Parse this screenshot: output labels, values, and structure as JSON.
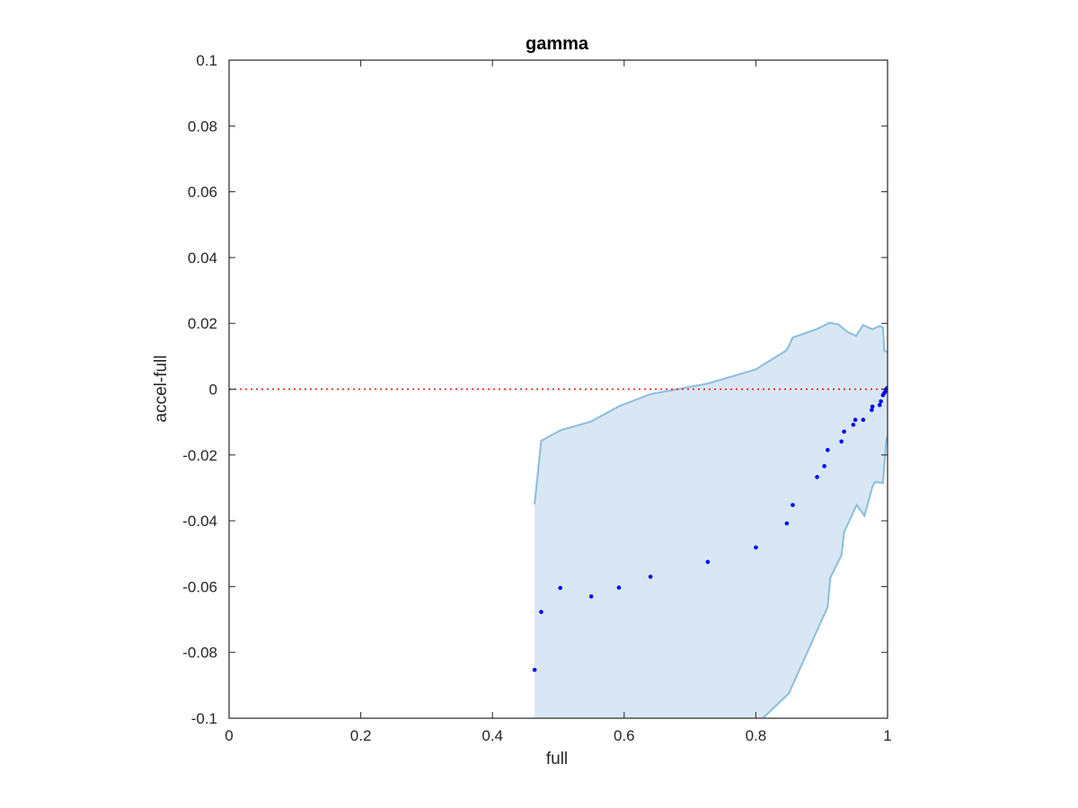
{
  "chart_data": {
    "type": "scatter",
    "title": "gamma",
    "xlabel": "full",
    "ylabel": "accel-full",
    "xlim": [
      0,
      1
    ],
    "ylim": [
      -0.1,
      0.1
    ],
    "xticks": [
      0,
      0.2,
      0.4,
      0.6,
      0.8,
      1
    ],
    "xtick_labels": [
      "0",
      "0.2",
      "0.4",
      "0.6",
      "0.8",
      "1"
    ],
    "yticks": [
      0.1,
      0.08,
      0.06,
      0.04,
      0.02,
      0,
      -0.02,
      -0.04,
      -0.06,
      -0.08,
      -0.1
    ],
    "ytick_labels": [
      "0.1",
      "0.08",
      "0.06",
      "0.04",
      "0.02",
      "0",
      "-0.02",
      "-0.04",
      "-0.06",
      "-0.08",
      "-0.1"
    ],
    "grid": false,
    "reference_line": {
      "y": 0,
      "style": "dotted",
      "color": "#ff0000"
    },
    "colors": {
      "points": "#0000ff",
      "band_fill": "#d8e7f3",
      "band_edge": "#8bbde0",
      "axes": "#262626"
    },
    "band": {
      "upper": [
        [
          0.464,
          -0.035
        ],
        [
          0.474,
          -0.0157
        ],
        [
          0.503,
          -0.0125
        ],
        [
          0.55,
          -0.0098
        ],
        [
          0.592,
          -0.0052
        ],
        [
          0.64,
          -0.0015
        ],
        [
          0.727,
          0.0017
        ],
        [
          0.8,
          0.006
        ],
        [
          0.847,
          0.0119
        ],
        [
          0.856,
          0.0157
        ],
        [
          0.893,
          0.0183
        ],
        [
          0.912,
          0.0202
        ],
        [
          0.925,
          0.0197
        ],
        [
          0.94,
          0.0173
        ],
        [
          0.952,
          0.0162
        ],
        [
          0.963,
          0.0195
        ],
        [
          0.977,
          0.0182
        ],
        [
          0.988,
          0.0192
        ],
        [
          0.993,
          0.0188
        ],
        [
          0.995,
          0.0118
        ],
        [
          1.0,
          0.0113
        ]
      ],
      "lower": [
        [
          1.0,
          -0.0143
        ],
        [
          0.998,
          -0.0156
        ],
        [
          0.993,
          -0.0285
        ],
        [
          0.981,
          -0.0282
        ],
        [
          0.977,
          -0.0296
        ],
        [
          0.965,
          -0.0385
        ],
        [
          0.953,
          -0.0352
        ],
        [
          0.934,
          -0.0435
        ],
        [
          0.93,
          -0.0505
        ],
        [
          0.913,
          -0.0573
        ],
        [
          0.909,
          -0.0662
        ],
        [
          0.85,
          -0.0925
        ],
        [
          0.8,
          -0.102
        ]
      ],
      "bottom_x": 0.464
    },
    "points": [
      {
        "x": 0.464,
        "y": -0.0853
      },
      {
        "x": 0.474,
        "y": -0.0677
      },
      {
        "x": 0.503,
        "y": -0.0604
      },
      {
        "x": 0.55,
        "y": -0.063
      },
      {
        "x": 0.592,
        "y": -0.0603
      },
      {
        "x": 0.64,
        "y": -0.057
      },
      {
        "x": 0.727,
        "y": -0.0525
      },
      {
        "x": 0.8,
        "y": -0.0481
      },
      {
        "x": 0.847,
        "y": -0.0408
      },
      {
        "x": 0.856,
        "y": -0.0352
      },
      {
        "x": 0.893,
        "y": -0.0267
      },
      {
        "x": 0.904,
        "y": -0.0234
      },
      {
        "x": 0.909,
        "y": -0.0185
      },
      {
        "x": 0.93,
        "y": -0.0159
      },
      {
        "x": 0.934,
        "y": -0.0129
      },
      {
        "x": 0.948,
        "y": -0.0108
      },
      {
        "x": 0.951,
        "y": -0.0093
      },
      {
        "x": 0.963,
        "y": -0.0093
      },
      {
        "x": 0.976,
        "y": -0.0063
      },
      {
        "x": 0.977,
        "y": -0.0053
      },
      {
        "x": 0.988,
        "y": -0.0048
      },
      {
        "x": 0.99,
        "y": -0.0037
      },
      {
        "x": 0.993,
        "y": -0.0018
      },
      {
        "x": 0.995,
        "y": -0.0012
      },
      {
        "x": 0.997,
        "y": -0.0006
      },
      {
        "x": 0.998,
        "y": 0.0
      },
      {
        "x": 1.0,
        "y": 0.0004
      }
    ]
  }
}
